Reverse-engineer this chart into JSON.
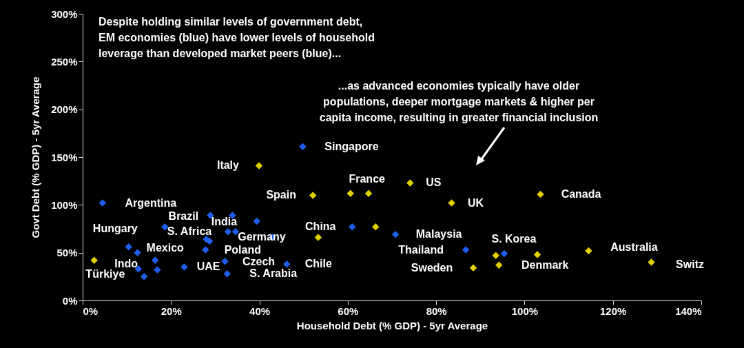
{
  "chart_data": {
    "type": "scatter",
    "xlabel": "Household Debt (% GDP) - 5yr Average",
    "ylabel": "Govt Debt (% GDP) - 5yr Average",
    "xlim": [
      0,
      140
    ],
    "ylim": [
      0,
      300
    ],
    "xticks": [
      {
        "value": 0,
        "label": "0%"
      },
      {
        "value": 20,
        "label": "20%"
      },
      {
        "value": 40,
        "label": "40%"
      },
      {
        "value": 60,
        "label": "60%"
      },
      {
        "value": 80,
        "label": "80%"
      },
      {
        "value": 100,
        "label": "100%"
      },
      {
        "value": 120,
        "label": "120%"
      },
      {
        "value": 140,
        "label": "140%"
      }
    ],
    "yticks": [
      {
        "value": 0,
        "label": "0%"
      },
      {
        "value": 50,
        "label": "50%"
      },
      {
        "value": 100,
        "label": "100%"
      },
      {
        "value": 150,
        "label": "150%"
      },
      {
        "value": 200,
        "label": "200%"
      },
      {
        "value": 250,
        "label": "250%"
      },
      {
        "value": 300,
        "label": "300%"
      }
    ],
    "marker": "diamond",
    "grid": false,
    "legend": false,
    "series": [
      {
        "color": "#1f5fef",
        "x": [
          4.5,
          28.9,
          33.9,
          39.4,
          18.6,
          32.9,
          34.6,
          28.0,
          28.7,
          42.9,
          10.4,
          12.4,
          27.8,
          16.4,
          16.9,
          12.6,
          13.9,
          23.0,
          32.2,
          32.7,
          46.2,
          49.8,
          61.0,
          70.8,
          86.7,
          95.4
        ],
        "values": [
          102,
          89,
          89,
          83,
          77,
          72,
          72,
          64,
          62,
          66,
          56,
          50,
          53,
          42,
          32,
          33,
          25,
          35,
          41,
          28,
          38,
          161,
          77,
          69,
          53,
          49
        ]
      },
      {
        "color": "#e0d000",
        "x": [
          2.6,
          52.1,
          39.9,
          60.6,
          64.7,
          74.1,
          83.5,
          66.3,
          53.3,
          88.4,
          93.5,
          94.2,
          103.6,
          102.9,
          114.5,
          128.7
        ],
        "values": [
          42,
          110,
          141,
          112,
          112,
          123,
          102,
          77,
          66,
          34,
          47,
          37,
          111,
          48,
          52,
          40
        ]
      }
    ],
    "annotations": [
      "Despite holding similar levels of government debt,\nEM economies (blue) have lower levels of household\nleverage than developed market peers (blue)...",
      "...as advanced economies typically have older\npopulations, deeper mortgage markets & higher per\ncapita income, resulting in greater financial inclusion",
      {
        "text": "Argentina",
        "x": 4.5,
        "y": 102
      },
      {
        "text": "Brazil",
        "x": 28.9,
        "y": 89
      },
      {
        "text": "India",
        "x": 33.9,
        "y": 89
      },
      {
        "text": "Hungary",
        "x": 18.6,
        "y": 77
      },
      {
        "text": "S. Africa",
        "x": 32.9,
        "y": 72
      },
      {
        "text": "Germany",
        "x": 53.3,
        "y": 66
      },
      {
        "text": "Mexico",
        "x": 10.4,
        "y": 56
      },
      {
        "text": "Poland",
        "x": 27.8,
        "y": 53
      },
      {
        "text": "Indo",
        "x": 16.4,
        "y": 42
      },
      {
        "text": "Türkiye",
        "x": 12.6,
        "y": 33
      },
      {
        "text": "UAE",
        "x": 23.0,
        "y": 35
      },
      {
        "text": "Czech",
        "x": 32.2,
        "y": 41
      },
      {
        "text": "S. Arabia",
        "x": 32.7,
        "y": 28
      },
      {
        "text": "Chile",
        "x": 46.2,
        "y": 38
      },
      {
        "text": "Singapore",
        "x": 49.8,
        "y": 161
      },
      {
        "text": "Italy",
        "x": 39.9,
        "y": 141
      },
      {
        "text": "Spain",
        "x": 52.1,
        "y": 110
      },
      {
        "text": "France",
        "x": 60.6,
        "y": 112
      },
      {
        "text": "US",
        "x": 74.1,
        "y": 123
      },
      {
        "text": "UK",
        "x": 83.5,
        "y": 102
      },
      {
        "text": "Canada",
        "x": 103.6,
        "y": 111
      },
      {
        "text": "China",
        "x": 61.0,
        "y": 77
      },
      {
        "text": "Malaysia",
        "x": 70.8,
        "y": 69
      },
      {
        "text": "Thailand",
        "x": 86.7,
        "y": 53
      },
      {
        "text": "S. Korea",
        "x": 95.4,
        "y": 49
      },
      {
        "text": "Sweden",
        "x": 88.4,
        "y": 34
      },
      {
        "text": "Denmark",
        "x": 94.2,
        "y": 37
      },
      {
        "text": "Australia",
        "x": 114.5,
        "y": 52
      },
      {
        "text": "Switz",
        "x": 128.7,
        "y": 40
      }
    ]
  }
}
